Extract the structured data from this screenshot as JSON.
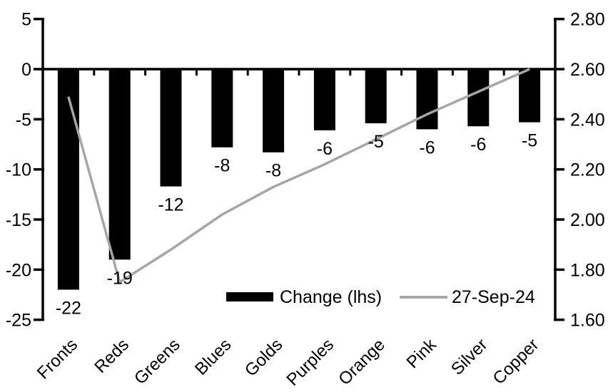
{
  "chart_data": {
    "type": "bar",
    "subtype": "bar-line-combo",
    "title": "",
    "xlabel": "",
    "ylabel": "",
    "grid": false,
    "background": "#ffffff",
    "categories": [
      "Fronts",
      "Reds",
      "Greens",
      "Blues",
      "Golds",
      "Purples",
      "Orange",
      "Pink",
      "Silver",
      "Copper"
    ],
    "series": [
      {
        "name": "Change (lhs)",
        "type": "bar",
        "axis": "left",
        "color": "#000000",
        "values": [
          -22,
          -19,
          -11.7,
          -7.8,
          -8.3,
          -6.1,
          -5.4,
          -6.0,
          -5.7,
          -5.3
        ],
        "data_labels": [
          "-22",
          "-19",
          "-12",
          "-8",
          "-8",
          "-6",
          "-5",
          "-6",
          "-6",
          "-5"
        ]
      },
      {
        "name": "27-Sep-24",
        "type": "line",
        "axis": "right",
        "color": "#a6a6a6",
        "values": [
          2.49,
          1.75,
          1.88,
          2.02,
          2.13,
          2.22,
          2.32,
          2.42,
          2.51,
          2.6
        ]
      }
    ],
    "left_axis": {
      "tick_labels": [
        "5",
        "0",
        "-5",
        "-10",
        "-15",
        "-20",
        "-25"
      ],
      "tick_values": [
        5,
        0,
        -5,
        -10,
        -15,
        -20,
        -25
      ],
      "ylim": [
        -25,
        5
      ]
    },
    "right_axis": {
      "tick_labels": [
        "2.80",
        "2.60",
        "2.40",
        "2.20",
        "2.00",
        "1.80",
        "1.60"
      ],
      "tick_values": [
        2.8,
        2.6,
        2.4,
        2.2,
        2.0,
        1.8,
        1.6
      ],
      "ylim": [
        1.6,
        2.8
      ]
    },
    "legend": {
      "position": "bottom-inside",
      "entries": [
        {
          "label": "Change (lhs)",
          "swatch": "bar",
          "color": "#000000"
        },
        {
          "label": "27-Sep-24",
          "swatch": "line",
          "color": "#a6a6a6"
        }
      ]
    },
    "colors": {
      "bar": "#000000",
      "line": "#a6a6a6",
      "axis": "#000000",
      "text": "#000000"
    }
  }
}
